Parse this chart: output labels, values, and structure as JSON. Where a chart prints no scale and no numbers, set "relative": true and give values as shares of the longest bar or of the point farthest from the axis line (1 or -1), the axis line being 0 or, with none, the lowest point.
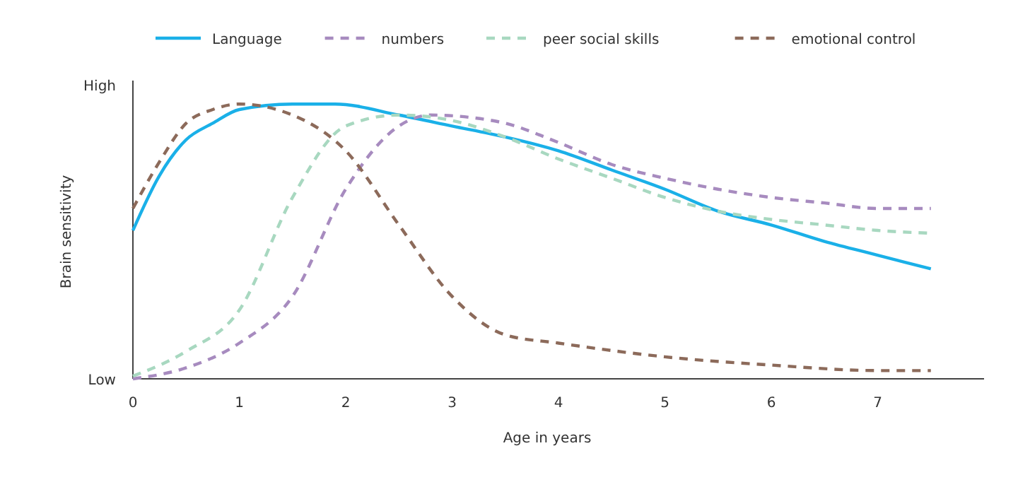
{
  "chart_data": {
    "type": "line",
    "relative": true,
    "xlabel": "Age in years",
    "ylabel": "Brain sensitivity",
    "annotations": [
      "High",
      "Low"
    ],
    "xlim": [
      0,
      8
    ],
    "xticks": [
      0,
      1,
      2,
      3,
      4,
      5,
      6,
      7
    ],
    "grid": false,
    "legend": "top",
    "marker": "none",
    "series": [
      {
        "name": "Language",
        "color": "#1ab0e8",
        "line_style": "solid",
        "x": [
          0,
          0.25,
          0.5,
          0.75,
          1,
          1.5,
          1.9,
          2.5,
          3,
          3.5,
          4,
          4.5,
          5,
          5.5,
          6,
          6.5,
          7,
          7.5
        ],
        "values": [
          0.54,
          0.74,
          0.87,
          0.93,
          0.98,
          1,
          1,
          0.96,
          0.92,
          0.88,
          0.83,
          0.76,
          0.69,
          0.61,
          0.56,
          0.5,
          0.45,
          0.4
        ]
      },
      {
        "name": "numbers",
        "color": "#a78bbf",
        "line_style": "dashed",
        "x": [
          0,
          0.5,
          1,
          1.5,
          2,
          2.5,
          2.8,
          3.2,
          3.5,
          4,
          4.5,
          5,
          5.5,
          6,
          6.5,
          7,
          7.5
        ],
        "values": [
          0,
          0.04,
          0.13,
          0.3,
          0.69,
          0.92,
          0.96,
          0.95,
          0.93,
          0.86,
          0.78,
          0.73,
          0.69,
          0.66,
          0.64,
          0.62,
          0.62
        ]
      },
      {
        "name": "peer social skills",
        "color": "#a8d8c0",
        "line_style": "dashed",
        "x": [
          0,
          0.5,
          1,
          1.5,
          2,
          2.5,
          3,
          3.5,
          4,
          4.5,
          5,
          5.5,
          6,
          6.5,
          7,
          7.5
        ],
        "values": [
          0.01,
          0.1,
          0.25,
          0.66,
          0.92,
          0.96,
          0.94,
          0.88,
          0.8,
          0.73,
          0.66,
          0.61,
          0.58,
          0.56,
          0.54,
          0.53
        ]
      },
      {
        "name": "emotional control",
        "color": "#8c6a5a",
        "line_style": "dashed",
        "x": [
          0,
          0.25,
          0.5,
          0.75,
          1,
          1.5,
          2,
          2.5,
          3,
          3.5,
          4,
          5,
          6,
          7,
          7.5
        ],
        "values": [
          0.62,
          0.79,
          0.93,
          0.98,
          1,
          0.96,
          0.83,
          0.56,
          0.3,
          0.16,
          0.13,
          0.08,
          0.05,
          0.03,
          0.03
        ]
      }
    ]
  }
}
